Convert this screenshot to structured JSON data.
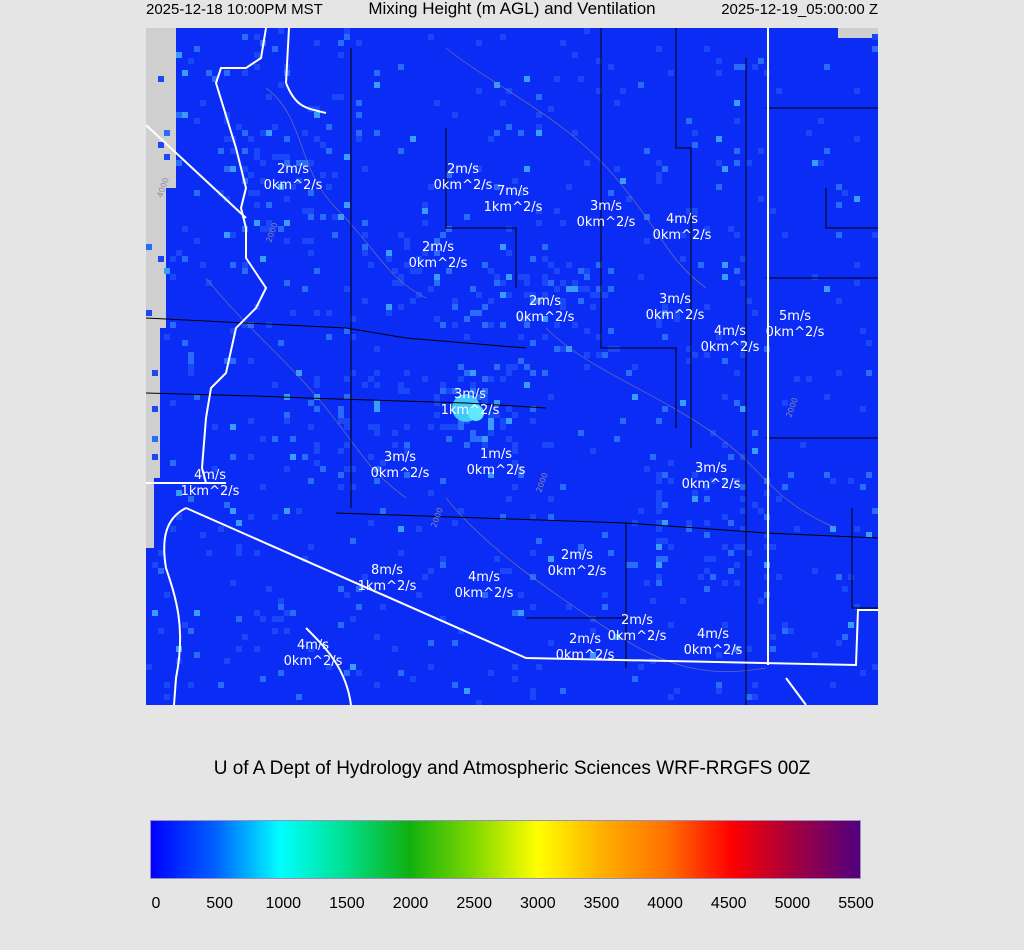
{
  "header": {
    "local_time": "2025-12-18 10:00PM MST",
    "title": "Mixing Height (m AGL) and Ventilation",
    "utc_time": "2025-12-19_05:00:00 Z"
  },
  "map": {
    "field": "Mixing Height (m AGL)",
    "background_color": "#0a2cf5",
    "boundary_color": "#ffffff",
    "county_line_color": "#000000",
    "contour_color": "#7a7a9a",
    "contour_labels": [
      "4000",
      "2000",
      "2000",
      "2000",
      "2000"
    ],
    "labels": [
      {
        "wind": "2m/s",
        "vent": "0km^2/s"
      },
      {
        "wind": "2m/s",
        "vent": "0km^2/s"
      },
      {
        "wind": "7m/s",
        "vent": "1km^2/s"
      },
      {
        "wind": "3m/s",
        "vent": "0km^2/s"
      },
      {
        "wind": "4m/s",
        "vent": "0km^2/s"
      },
      {
        "wind": "2m/s",
        "vent": "0km^2/s"
      },
      {
        "wind": "2m/s",
        "vent": "0km^2/s"
      },
      {
        "wind": "3m/s",
        "vent": "0km^2/s"
      },
      {
        "wind": "4m/s",
        "vent": "0km^2/s"
      },
      {
        "wind": "5m/s",
        "vent": "0km^2/s"
      },
      {
        "wind": "3m/s",
        "vent": "1km^2/s"
      },
      {
        "wind": "1m/s",
        "vent": "0km^2/s"
      },
      {
        "wind": "3m/s",
        "vent": "0km^2/s"
      },
      {
        "wind": "3m/s",
        "vent": "0km^2/s"
      },
      {
        "wind": "4m/s",
        "vent": "1km^2/s"
      },
      {
        "wind": "2m/s",
        "vent": "0km^2/s"
      },
      {
        "wind": "8m/s",
        "vent": "1km^2/s"
      },
      {
        "wind": "4m/s",
        "vent": "0km^2/s"
      },
      {
        "wind": "2m/s",
        "vent": "0km^2/s"
      },
      {
        "wind": "2m/s",
        "vent": "0km^2/s"
      },
      {
        "wind": "4m/s",
        "vent": "0km^2/s"
      },
      {
        "wind": "4m/s",
        "vent": "0km^2/s"
      }
    ]
  },
  "credit": "U of A Dept of Hydrology and Atmospheric Sciences WRF-RRGFS 00Z",
  "colorbar": {
    "ticks": [
      "0",
      "500",
      "1000",
      "1500",
      "2000",
      "2500",
      "3000",
      "3500",
      "4000",
      "4500",
      "5000",
      "5500"
    ],
    "range": [
      0,
      5500
    ],
    "colors": [
      "#0000ff",
      "#0060ff",
      "#00ffff",
      "#00e090",
      "#10b010",
      "#80d800",
      "#ffff00",
      "#ffb000",
      "#ff7000",
      "#ff0000",
      "#a00040",
      "#500080"
    ]
  }
}
